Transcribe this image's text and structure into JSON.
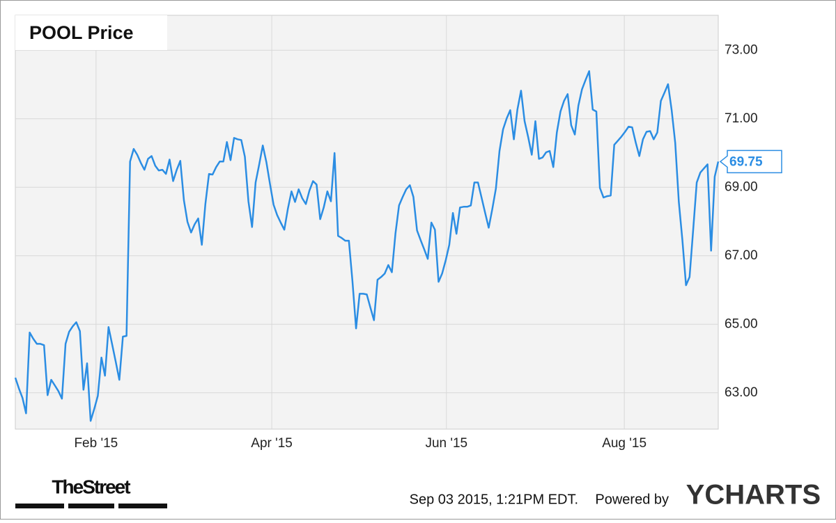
{
  "chart_data": {
    "type": "line",
    "title": "POOL Price",
    "series": [
      {
        "name": "POOL",
        "color": "#2b8de3",
        "values": [
          63.44,
          63.13,
          62.85,
          62.4,
          64.76,
          64.58,
          64.43,
          64.43,
          64.39,
          62.93,
          63.38,
          63.22,
          63.05,
          62.83,
          64.43,
          64.78,
          64.94,
          65.06,
          64.8,
          63.09,
          63.86,
          62.18,
          62.53,
          62.91,
          64.03,
          63.5,
          64.92,
          64.41,
          63.91,
          63.38,
          64.64,
          64.66,
          69.75,
          70.12,
          69.95,
          69.71,
          69.51,
          69.83,
          69.91,
          69.63,
          69.49,
          69.51,
          69.39,
          69.81,
          69.18,
          69.51,
          69.77,
          68.62,
          67.99,
          67.68,
          67.92,
          68.09,
          67.32,
          68.51,
          69.39,
          69.37,
          69.59,
          69.75,
          69.75,
          70.32,
          69.79,
          70.44,
          70.4,
          70.38,
          69.89,
          68.59,
          67.84,
          69.14,
          69.67,
          70.22,
          69.73,
          69.1,
          68.49,
          68.19,
          67.97,
          67.76,
          68.37,
          68.88,
          68.57,
          68.94,
          68.68,
          68.51,
          68.9,
          69.18,
          69.08,
          68.07,
          68.41,
          68.88,
          68.59,
          70.0,
          67.58,
          67.52,
          67.44,
          67.44,
          66.26,
          64.88,
          65.89,
          65.89,
          65.87,
          65.49,
          65.12,
          66.3,
          66.38,
          66.48,
          66.73,
          66.52,
          67.66,
          68.47,
          68.72,
          68.94,
          69.06,
          68.72,
          67.74,
          67.46,
          67.19,
          66.91,
          67.97,
          67.76,
          66.24,
          66.48,
          66.87,
          67.32,
          68.25,
          67.64,
          68.41,
          68.43,
          68.43,
          68.47,
          69.14,
          69.14,
          68.7,
          68.25,
          67.82,
          68.37,
          68.96,
          70.06,
          70.69,
          71.01,
          71.25,
          70.4,
          71.27,
          71.82,
          70.93,
          70.46,
          69.95,
          70.93,
          69.83,
          69.87,
          70.02,
          70.06,
          69.59,
          70.6,
          71.21,
          71.52,
          71.72,
          70.81,
          70.54,
          71.38,
          71.86,
          72.13,
          72.39,
          71.27,
          71.21,
          68.98,
          68.7,
          68.74,
          68.76,
          70.24,
          70.36,
          70.48,
          70.62,
          70.77,
          70.75,
          70.3,
          69.91,
          70.4,
          70.62,
          70.64,
          70.4,
          70.6,
          71.52,
          71.76,
          72.01,
          71.25,
          70.3,
          68.57,
          67.46,
          66.14,
          66.38,
          67.76,
          69.14,
          69.43,
          69.55,
          69.67,
          67.15,
          69.31,
          69.75
        ]
      }
    ],
    "xlim": [
      0,
      196
    ],
    "xticks": [
      {
        "value": 22.5,
        "label": "Feb '15"
      },
      {
        "value": 71.5,
        "label": "Apr '15"
      },
      {
        "value": 120.2,
        "label": "Jun '15"
      },
      {
        "value": 169.8,
        "label": "Aug '15"
      }
    ],
    "ylim": [
      61.94,
      74.02
    ],
    "yticks": [
      {
        "value": 63,
        "label": "63.00"
      },
      {
        "value": 65,
        "label": "65.00"
      },
      {
        "value": 67,
        "label": "67.00"
      },
      {
        "value": 69,
        "label": "69.00"
      },
      {
        "value": 71,
        "label": "71.00"
      },
      {
        "value": 73,
        "label": "73.00"
      }
    ],
    "grid": true,
    "source_logo": "TheStreet",
    "timestamp": "Sep 03 2015, 1:21PM EDT.",
    "powered_by": "Powered by",
    "brand": "YCHARTS"
  }
}
